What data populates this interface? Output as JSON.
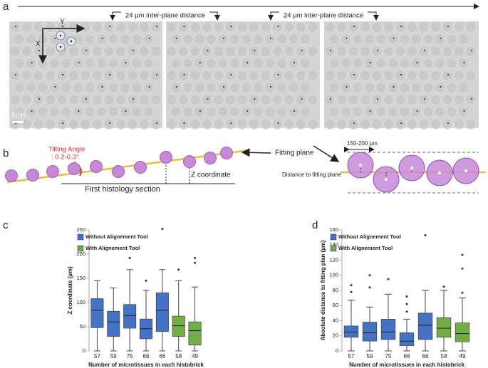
{
  "panel_a": {
    "label": "a",
    "axis_y": "Y",
    "axis_x": "X",
    "spacing_labels": [
      "24 µm inter-plane distance",
      "24 µm inter-plane distance"
    ],
    "scale_bar": "2 mm"
  },
  "panel_b": {
    "label": "b",
    "tilt_title": "Tilting Angle",
    "tilt_value": ": 0.2-0.3°",
    "z_label": "Z coordinate",
    "section_label": "First histology section",
    "plane_label": "Fitting plane",
    "diameter_label": "150-200 µm",
    "distance_label": "Distance to fitting plane"
  },
  "chart_data": [
    {
      "type": "boxplot",
      "panel_label": "c",
      "y_label": "Z coordinate (µm)",
      "x_label": "Number of microtissues in each histobrick",
      "categories": [
        "57",
        "59",
        "75",
        "66",
        "66",
        "58",
        "49"
      ],
      "ylim": [
        0,
        250
      ],
      "yticks": [
        0,
        50,
        100,
        150,
        200,
        250
      ],
      "series": [
        {
          "name": "Without Alignement Tool",
          "color": "#4472c4",
          "values": [
            {
              "min": 0,
              "q1": 48,
              "median": 84,
              "q3": 108,
              "max": 145,
              "outliers": []
            },
            {
              "min": 0,
              "q1": 30,
              "median": 60,
              "q3": 82,
              "max": 130,
              "outliers": []
            },
            {
              "min": 0,
              "q1": 47,
              "median": 73,
              "q3": 96,
              "max": 168,
              "outliers": [
                192
              ]
            },
            {
              "min": 0,
              "q1": 25,
              "median": 46,
              "q3": 66,
              "max": 125,
              "outliers": [
                145
              ]
            },
            {
              "min": 0,
              "q1": 40,
              "median": 84,
              "q3": 120,
              "max": 168,
              "outliers": [
                252
              ]
            },
            null,
            null
          ]
        },
        {
          "name": "With Alignement Tool",
          "color": "#70ad47",
          "values": [
            null,
            null,
            null,
            null,
            null,
            {
              "min": 0,
              "q1": 30,
              "median": 52,
              "q3": 72,
              "max": 145,
              "outliers": [
                168
              ]
            },
            {
              "min": 0,
              "q1": 12,
              "median": 42,
              "q3": 60,
              "max": 132,
              "outliers": [
                182,
                192
              ]
            }
          ]
        }
      ]
    },
    {
      "type": "boxplot",
      "panel_label": "d",
      "y_label": "Absolute distance to fitting plan (µm)",
      "x_label": "Number of microtissues in each histobrick",
      "categories": [
        "57",
        "59",
        "75",
        "66",
        "66",
        "58",
        "49"
      ],
      "ylim": [
        0,
        160
      ],
      "yticks": [
        0,
        20,
        40,
        60,
        80,
        100,
        120,
        140,
        160
      ],
      "series": [
        {
          "name": "Without Alignement Tool",
          "color": "#4472c4",
          "values": [
            {
              "min": 0,
              "q1": 18,
              "median": 25,
              "q3": 33,
              "max": 67,
              "outliers": [
                78,
                87
              ]
            },
            {
              "min": 0,
              "q1": 13,
              "median": 24,
              "q3": 38,
              "max": 58,
              "outliers": [
                84,
                100
              ]
            },
            {
              "min": 0,
              "q1": 15,
              "median": 25,
              "q3": 42,
              "max": 75,
              "outliers": [
                95
              ]
            },
            {
              "min": 0,
              "q1": 7,
              "median": 13,
              "q3": 24,
              "max": 42,
              "outliers": [
                52,
                62,
                72
              ]
            },
            {
              "min": 0,
              "q1": 15,
              "median": 34,
              "q3": 50,
              "max": 80,
              "outliers": [
                153
              ]
            },
            null,
            null
          ]
        },
        {
          "name": "With Alignement Tool",
          "color": "#70ad47",
          "values": [
            null,
            null,
            null,
            null,
            null,
            {
              "min": 0,
              "q1": 18,
              "median": 30,
              "q3": 44,
              "max": 80,
              "outliers": [
                85
              ]
            },
            {
              "min": 0,
              "q1": 12,
              "median": 23,
              "q3": 37,
              "max": 70,
              "outliers": [
                77,
                109,
                127
              ]
            }
          ]
        }
      ]
    }
  ]
}
